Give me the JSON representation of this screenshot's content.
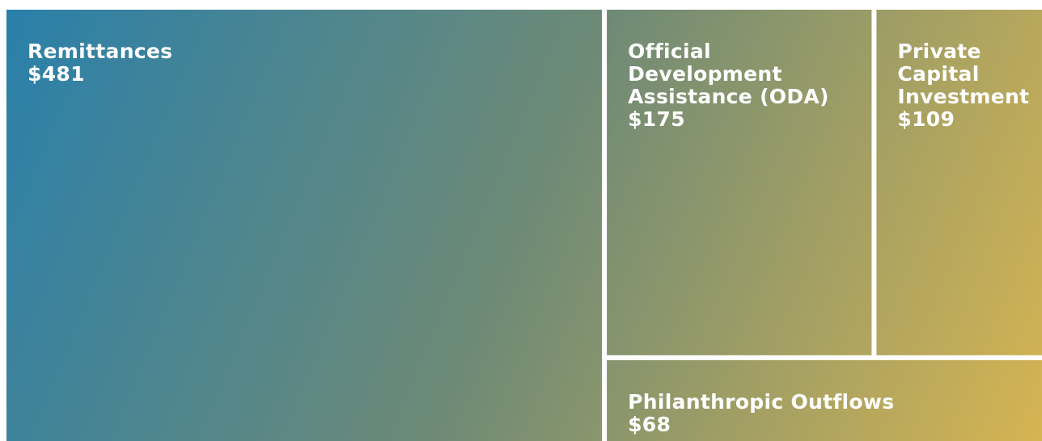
{
  "chart_data": {
    "type": "treemap",
    "categories": [
      "Remittances",
      "Official Development Assistance (ODA)",
      "Private Capital Investment",
      "Philanthropic Outflows"
    ],
    "values": [
      481,
      175,
      109,
      68
    ],
    "value_labels": [
      "$481",
      "$175",
      "$109",
      "$68"
    ],
    "gradient_colors": [
      "#2a80aa",
      "#6e8a76",
      "#d6b452"
    ]
  }
}
